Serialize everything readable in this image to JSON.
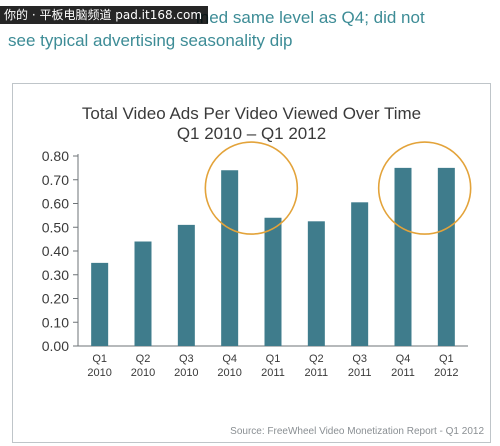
{
  "headline": {
    "line1": "ined same level as Q4; did not",
    "line2": "see typical advertising seasonality dip"
  },
  "watermark": "你的 · 平板电脑频道 pad.it168.com",
  "colors": {
    "bar": "#3f7c8c",
    "circle": "#e3a33a",
    "headline": "#3d8c96",
    "grid": "#9aa0a4"
  },
  "chart_data": {
    "type": "bar",
    "title": "Total Video Ads Per Video Viewed Over Time",
    "subtitle": "Q1 2010 – Q1 2012",
    "categories": [
      [
        "Q1",
        "2010"
      ],
      [
        "Q2",
        "2010"
      ],
      [
        "Q3",
        "2010"
      ],
      [
        "Q4",
        "2010"
      ],
      [
        "Q1",
        "2011"
      ],
      [
        "Q2",
        "2011"
      ],
      [
        "Q3",
        "2011"
      ],
      [
        "Q4",
        "2011"
      ],
      [
        "Q1",
        "2012"
      ]
    ],
    "values": [
      0.35,
      0.44,
      0.51,
      0.74,
      0.54,
      0.525,
      0.605,
      0.75,
      0.75
    ],
    "ylim": [
      0,
      0.8
    ],
    "yticks": [
      "0.00",
      "0.10",
      "0.20",
      "0.30",
      "0.40",
      "0.50",
      "0.60",
      "0.70",
      "0.80"
    ],
    "xlabel": "",
    "ylabel": "",
    "grid": false,
    "legend": "none",
    "annotations": [
      {
        "type": "circle",
        "around_categories": [
          3,
          4
        ]
      },
      {
        "type": "circle",
        "around_categories": [
          7,
          8
        ]
      }
    ],
    "source": "Source: FreeWheel Video Monetization Report - Q1 2012"
  }
}
